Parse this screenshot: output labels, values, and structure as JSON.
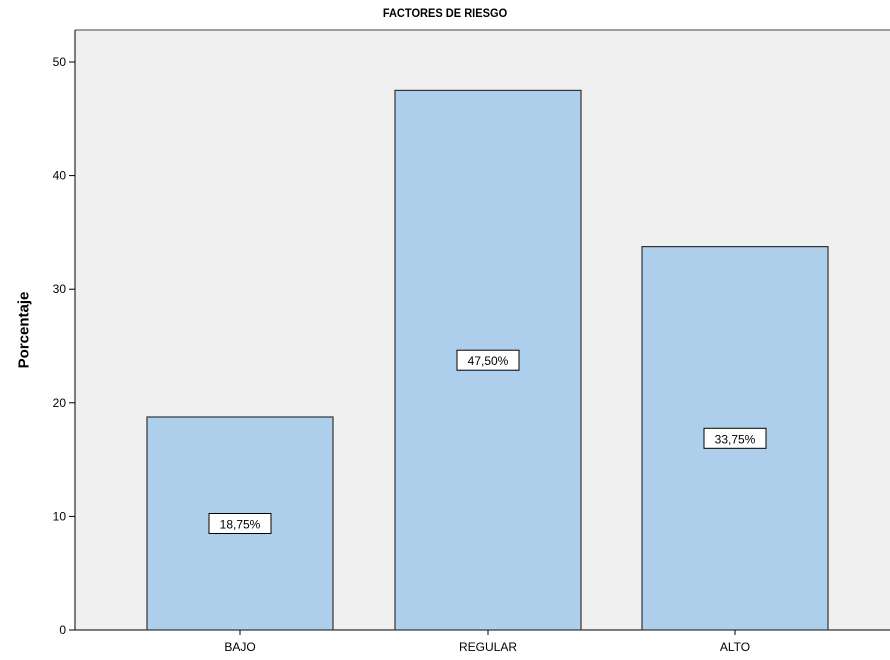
{
  "chart_data": {
    "type": "bar",
    "title": "FACTORES DE RIESGO",
    "xlabel": "",
    "ylabel": "Porcentaje",
    "categories": [
      "BAJO",
      "REGULAR",
      "ALTO"
    ],
    "values": [
      18.75,
      47.5,
      33.75
    ],
    "data_labels": [
      "18,75%",
      "47,50%",
      "33,75%"
    ],
    "ylim": [
      0,
      53
    ],
    "yticks": [
      0,
      10,
      20,
      30,
      40,
      50
    ],
    "grid": false,
    "legend": "none",
    "colors": {
      "bar_fill": "#aecfec",
      "bar_stroke": "#333333",
      "plot_background": "#f0f0f0"
    }
  }
}
